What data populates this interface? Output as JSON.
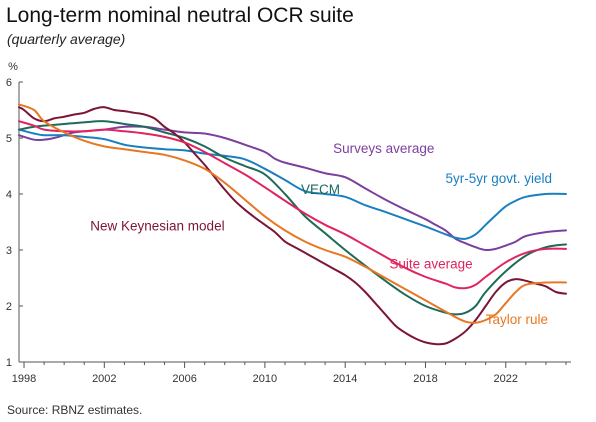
{
  "header": {
    "title": "Long-term nominal neutral OCR suite",
    "subtitle": "(quarterly average)"
  },
  "footer": {
    "source": "Source: RBNZ estimates."
  },
  "chart_data": {
    "type": "line",
    "title": "Long-term nominal neutral OCR suite",
    "subtitle": "(quarterly average)",
    "ylabel": "%",
    "xlabel": "",
    "xlim": [
      1997.75,
      2025.25
    ],
    "ylim": [
      1,
      6
    ],
    "yticks": [
      1,
      2,
      3,
      4,
      5,
      6
    ],
    "xticks": [
      1998,
      2002,
      2006,
      2010,
      2014,
      2018,
      2022
    ],
    "grid": false,
    "legend": "inline labels",
    "series": [
      {
        "name": "Surveys average",
        "color": "#7b3f9e",
        "x": [
          1997.75,
          1998.5,
          1999,
          1999.5,
          2000,
          2000.5,
          2001,
          2002,
          2003,
          2004,
          2005,
          2006,
          2007,
          2008,
          2009,
          2010,
          2010.5,
          2011,
          2012,
          2013,
          2014,
          2015,
          2016,
          2017,
          2018,
          2018.5,
          2019,
          2019.5,
          2020,
          2020.5,
          2021,
          2021.5,
          2022,
          2022.5,
          2023,
          2024,
          2025
        ],
        "values": [
          5.05,
          4.97,
          4.97,
          5.0,
          5.05,
          5.1,
          5.12,
          5.15,
          5.2,
          5.2,
          5.15,
          5.1,
          5.08,
          5.0,
          4.88,
          4.75,
          4.63,
          4.56,
          4.47,
          4.37,
          4.3,
          4.1,
          3.9,
          3.72,
          3.55,
          3.45,
          3.35,
          3.2,
          3.12,
          3.05,
          3.0,
          3.02,
          3.08,
          3.15,
          3.25,
          3.32,
          3.35
        ]
      },
      {
        "name": "5yr-5yr govt. yield",
        "color": "#1a7fc1",
        "x": [
          1997.75,
          1998.5,
          1999,
          2000,
          2001,
          2002,
          2003,
          2004,
          2005,
          2006,
          2007,
          2008,
          2009,
          2010,
          2011,
          2012,
          2013,
          2014,
          2015,
          2016,
          2017,
          2018,
          2019,
          2019.5,
          2020,
          2020.5,
          2021,
          2021.5,
          2022,
          2022.5,
          2023,
          2024,
          2025
        ],
        "values": [
          5.15,
          5.08,
          5.05,
          5.05,
          5.02,
          4.98,
          4.88,
          4.83,
          4.8,
          4.78,
          4.72,
          4.68,
          4.62,
          4.45,
          4.25,
          4.05,
          4.0,
          3.95,
          3.8,
          3.68,
          3.55,
          3.42,
          3.28,
          3.22,
          3.2,
          3.28,
          3.45,
          3.62,
          3.78,
          3.88,
          3.95,
          4.0,
          4.0
        ]
      },
      {
        "name": "VECM",
        "color": "#1d6b5a",
        "x": [
          1997.75,
          1998.5,
          1999,
          2000,
          2001,
          2002,
          2003,
          2004,
          2005,
          2006,
          2007,
          2008,
          2009,
          2010,
          2011,
          2012,
          2013,
          2014,
          2015,
          2016,
          2017,
          2018,
          2019,
          2019.5,
          2020,
          2020.5,
          2021,
          2022,
          2023,
          2024,
          2025
        ],
        "values": [
          5.15,
          5.2,
          5.22,
          5.25,
          5.28,
          5.3,
          5.25,
          5.2,
          5.1,
          5.0,
          4.85,
          4.65,
          4.5,
          4.35,
          4.0,
          3.6,
          3.3,
          3.0,
          2.72,
          2.45,
          2.2,
          2.0,
          1.88,
          1.85,
          1.88,
          2.0,
          2.25,
          2.62,
          2.9,
          3.05,
          3.1
        ]
      },
      {
        "name": "New Keynesian model",
        "color": "#7c1535",
        "x": [
          1997.75,
          1998,
          1998.5,
          1999,
          1999.5,
          2000,
          2000.5,
          2001,
          2001.5,
          2002,
          2002.5,
          2003,
          2003.5,
          2004,
          2004.5,
          2005,
          2005.5,
          2006,
          2006.5,
          2007,
          2007.5,
          2008,
          2008.5,
          2009,
          2009.5,
          2010,
          2010.5,
          2011,
          2011.5,
          2012,
          2012.5,
          2013,
          2013.5,
          2014,
          2014.5,
          2015,
          2015.5,
          2016,
          2016.5,
          2017,
          2017.5,
          2018,
          2018.5,
          2019,
          2019.5,
          2020,
          2020.5,
          2021,
          2021.5,
          2022,
          2022.5,
          2023,
          2023.5,
          2024,
          2024.5,
          2025
        ],
        "values": [
          5.55,
          5.5,
          5.35,
          5.3,
          5.35,
          5.38,
          5.42,
          5.45,
          5.52,
          5.55,
          5.5,
          5.48,
          5.45,
          5.42,
          5.35,
          5.2,
          5.08,
          4.92,
          4.72,
          4.52,
          4.3,
          4.08,
          3.88,
          3.72,
          3.58,
          3.45,
          3.32,
          3.15,
          3.05,
          2.95,
          2.85,
          2.75,
          2.65,
          2.55,
          2.42,
          2.25,
          2.05,
          1.85,
          1.65,
          1.52,
          1.42,
          1.35,
          1.32,
          1.33,
          1.42,
          1.55,
          1.75,
          2.0,
          2.25,
          2.42,
          2.48,
          2.45,
          2.4,
          2.35,
          2.25,
          2.22
        ]
      },
      {
        "name": "Suite average",
        "color": "#e0245e",
        "x": [
          1997.75,
          1998.5,
          1999,
          2000,
          2001,
          2002,
          2003,
          2004,
          2005,
          2006,
          2007,
          2008,
          2009,
          2010,
          2011,
          2012,
          2013,
          2014,
          2015,
          2016,
          2017,
          2018,
          2019,
          2019.5,
          2020,
          2020.5,
          2021,
          2022,
          2023,
          2024,
          2025
        ],
        "values": [
          5.3,
          5.22,
          5.15,
          5.12,
          5.12,
          5.15,
          5.12,
          5.08,
          5.02,
          4.92,
          4.75,
          4.55,
          4.35,
          4.12,
          3.88,
          3.65,
          3.45,
          3.28,
          3.08,
          2.88,
          2.68,
          2.52,
          2.4,
          2.33,
          2.32,
          2.38,
          2.52,
          2.78,
          2.95,
          3.02,
          3.02
        ]
      },
      {
        "name": "Taylor rule",
        "color": "#e87722",
        "x": [
          1997.75,
          1998.5,
          1999,
          2000,
          2001,
          2002,
          2003,
          2004,
          2005,
          2006,
          2007,
          2008,
          2009,
          2010,
          2011,
          2012,
          2013,
          2014,
          2015,
          2016,
          2017,
          2018,
          2019,
          2019.5,
          2020,
          2020.5,
          2021,
          2021.5,
          2022,
          2022.5,
          2023,
          2024,
          2025
        ],
        "values": [
          5.6,
          5.5,
          5.3,
          5.1,
          4.95,
          4.85,
          4.8,
          4.75,
          4.7,
          4.6,
          4.45,
          4.2,
          3.9,
          3.6,
          3.35,
          3.15,
          3.0,
          2.88,
          2.7,
          2.5,
          2.3,
          2.1,
          1.9,
          1.8,
          1.72,
          1.7,
          1.75,
          1.85,
          2.05,
          2.25,
          2.38,
          2.42,
          2.42
        ]
      }
    ],
    "annotations": [
      {
        "series": "Surveys average",
        "text": "Surveys average",
        "x": 2013.4,
        "y": 4.73
      },
      {
        "series": "5yr-5yr govt. yield",
        "text": "5yr-5yr govt. yield",
        "x": 2019.0,
        "y": 4.2
      },
      {
        "series": "VECM",
        "text": "VECM",
        "x": 2011.8,
        "y": 4.0
      },
      {
        "series": "New Keynesian model",
        "text": "New Keynesian model",
        "x": 2001.3,
        "y": 3.35
      },
      {
        "series": "Suite average",
        "text": "Suite average",
        "x": 2016.2,
        "y": 2.67
      },
      {
        "series": "Taylor rule",
        "text": "Taylor rule",
        "x": 2021.0,
        "y": 1.68
      }
    ]
  }
}
